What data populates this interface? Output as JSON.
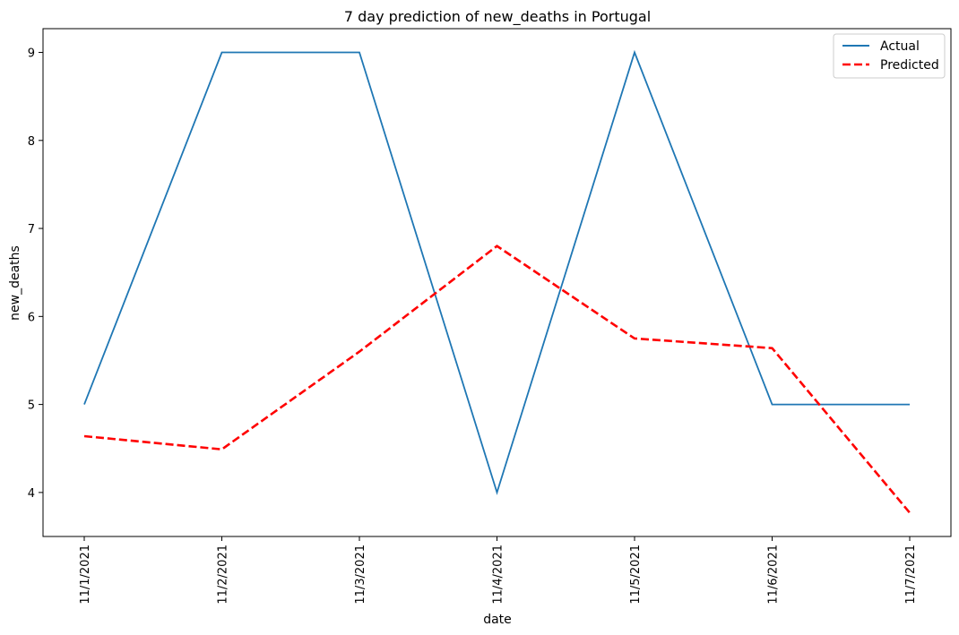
{
  "chart_data": {
    "type": "line",
    "title": "7 day prediction of new_deaths in Portugal",
    "xlabel": "date",
    "ylabel": "new_deaths",
    "categories": [
      "11/1/2021",
      "11/2/2021",
      "11/3/2021",
      "11/4/2021",
      "11/5/2021",
      "11/6/2021",
      "11/7/2021"
    ],
    "ylim": [
      3.5,
      9.27
    ],
    "yticks": [
      4,
      5,
      6,
      7,
      8,
      9
    ],
    "grid": false,
    "legend_position": "top-right",
    "series": [
      {
        "name": "Actual",
        "values": [
          5,
          9,
          9,
          4,
          9,
          5,
          5
        ],
        "color": "#1f77b4",
        "style": "solid"
      },
      {
        "name": "Predicted",
        "values": [
          4.64,
          4.49,
          5.6,
          6.8,
          5.75,
          5.64,
          3.77
        ],
        "color": "#ff0000",
        "style": "dashed"
      }
    ]
  }
}
